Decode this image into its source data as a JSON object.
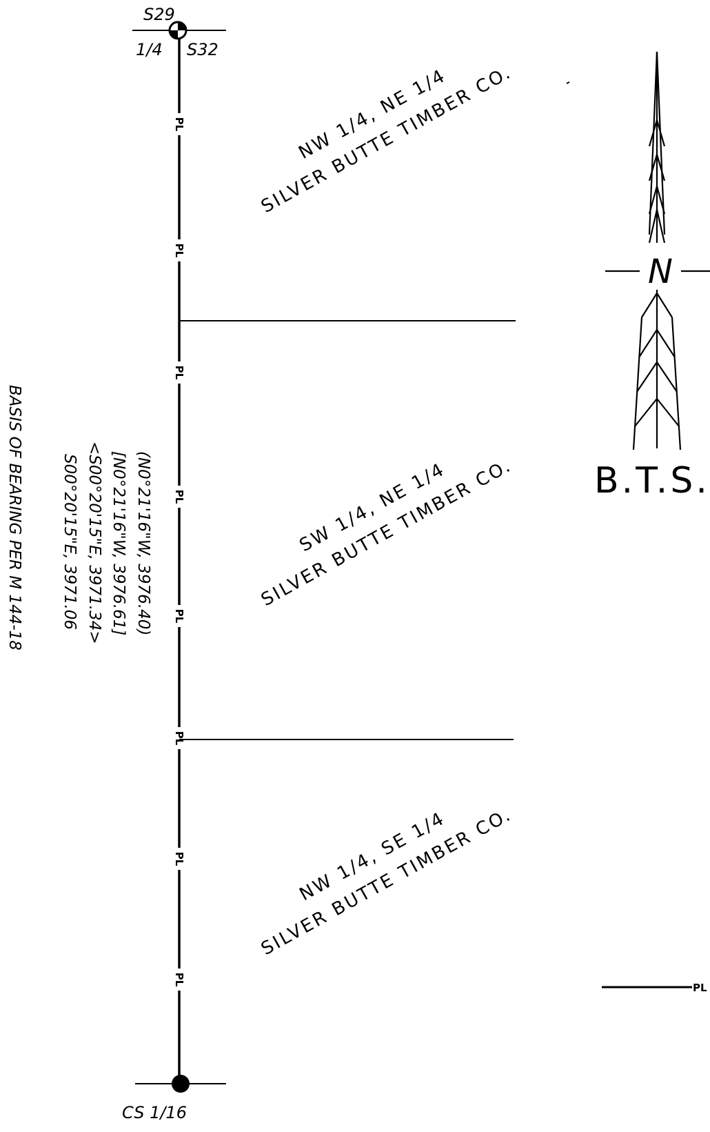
{
  "corners": {
    "top": {
      "upper_label": "S29",
      "lower_left_label": "1/4",
      "lower_right_label": "S32"
    },
    "bottom": {
      "label": "CS 1/16"
    }
  },
  "property_line_tag": "PL",
  "parcels": [
    {
      "line1": "NW 1/4, NE 1/4",
      "line2": "SILVER BUTTE TIMBER CO."
    },
    {
      "line1": "SW 1/4, NE 1/4",
      "line2": "SILVER BUTTE TIMBER CO."
    },
    {
      "line1": "NW 1/4, SE 1/4",
      "line2": "SILVER BUTTE TIMBER CO."
    }
  ],
  "bearings": [
    "(N0°21'16\"W, 3976.40)",
    "[N0°21'16\"W, 3976.61]",
    "<S00°20'15\"E, 3971.34>",
    "S00°20'15\"E, 3971.06"
  ],
  "basis_of_bearing": "BASIS OF BEARING PER M 144-18",
  "north_arrow": {
    "letter": "N",
    "caption": "B.T.S."
  },
  "legend": {
    "tag": "PL"
  }
}
